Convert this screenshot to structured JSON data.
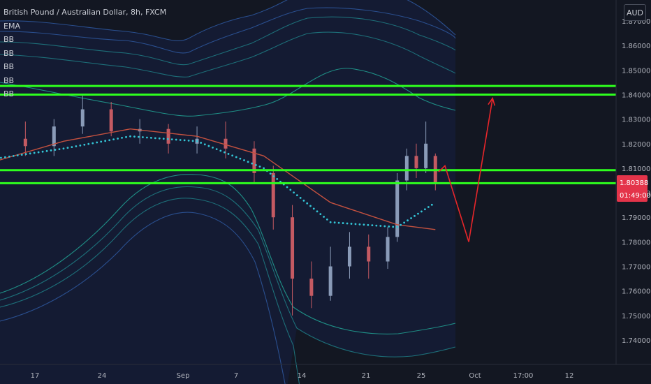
{
  "legend": {
    "symbol": "British Pound / Australian Dollar, 8h, FXCM",
    "indicators": [
      "EMA",
      "BB",
      "BB",
      "BB",
      "BB",
      "BB"
    ]
  },
  "currency": "AUD",
  "price_tag": {
    "price": "1.80388",
    "countdown": "01:49:00"
  },
  "colors": {
    "background": "#131722",
    "up_candle": "#8a9bb8",
    "down_candle": "#c45a62",
    "ema": "#c4513f",
    "dotted_mid": "#34c5d6",
    "bb_inner": "#1f8f86",
    "bb_mid": "#1d6f79",
    "bb_outer": "#2a4f8f",
    "bb_fill": "#16214a",
    "horizontal_lines": "#2eff1e",
    "projection": "#e8262a",
    "price_tag_bg": "#e4344a"
  },
  "chart_data": {
    "type": "line",
    "title": "British Pound / Australian Dollar, 8h, FXCM",
    "xlabel": "",
    "ylabel": "",
    "ylim": [
      1.7335,
      1.8775
    ],
    "grid": false,
    "x_ticks": [
      "17",
      "24",
      "Sep",
      "7",
      "14",
      "21",
      "25",
      "Oct",
      "17:00",
      "12"
    ],
    "y_ticks": [
      "1.74000",
      "1.75000",
      "1.76000",
      "1.77000",
      "1.78000",
      "1.79000",
      "1.80000",
      "1.81000",
      "1.82000",
      "1.83000",
      "1.84000",
      "1.85000",
      "1.86000",
      "1.87000"
    ],
    "horizontal_levels": [
      1.8435,
      1.84,
      1.8092,
      1.8039
    ],
    "projection": [
      {
        "date": "Sep 28 08:00",
        "price": 1.8085
      },
      {
        "date": "Sep 29 00:00",
        "price": 1.811
      },
      {
        "date": "Oct 01 12:00",
        "price": 1.78
      },
      {
        "date": "Oct 04 00:00",
        "price": 1.8385
      }
    ],
    "series": [
      {
        "name": "EMA",
        "x": [
          "Aug 13",
          "Aug 20",
          "Aug 27",
          "Sep 3",
          "Sep 10",
          "Sep 17",
          "Sep 24",
          "Sep 28"
        ],
        "values": [
          1.813,
          1.821,
          1.826,
          1.823,
          1.815,
          1.796,
          1.787,
          1.785
        ]
      },
      {
        "name": "BB",
        "x": [
          "Aug 13",
          "Aug 20",
          "Aug 27",
          "Sep 3",
          "Sep 10",
          "Sep 17",
          "Sep 24",
          "Sep 28"
        ],
        "values": [
          1.814,
          1.818,
          1.823,
          1.821,
          1.81,
          1.788,
          1.786,
          1.796
        ]
      }
    ],
    "candles": [
      {
        "x": "Aug 13",
        "open": 1.816,
        "close": 1.822,
        "high": 1.827,
        "low": 1.812
      },
      {
        "x": "Aug 16",
        "open": 1.822,
        "close": 1.819,
        "high": 1.829,
        "low": 1.815
      },
      {
        "x": "Aug 19",
        "open": 1.819,
        "close": 1.827,
        "high": 1.83,
        "low": 1.815
      },
      {
        "x": "Aug 22",
        "open": 1.827,
        "close": 1.834,
        "high": 1.8395,
        "low": 1.824
      },
      {
        "x": "Aug 25",
        "open": 1.834,
        "close": 1.825,
        "high": 1.837,
        "low": 1.823
      },
      {
        "x": "Aug 28",
        "open": 1.825,
        "close": 1.826,
        "high": 1.83,
        "low": 1.82
      },
      {
        "x": "Aug 31",
        "open": 1.826,
        "close": 1.82,
        "high": 1.828,
        "low": 1.816
      },
      {
        "x": "Sep 3",
        "open": 1.82,
        "close": 1.822,
        "high": 1.827,
        "low": 1.816
      },
      {
        "x": "Sep 6",
        "open": 1.822,
        "close": 1.818,
        "high": 1.829,
        "low": 1.814
      },
      {
        "x": "Sep 9",
        "open": 1.818,
        "close": 1.808,
        "high": 1.821,
        "low": 1.804
      },
      {
        "x": "Sep 11",
        "open": 1.808,
        "close": 1.79,
        "high": 1.811,
        "low": 1.785
      },
      {
        "x": "Sep 13",
        "open": 1.79,
        "close": 1.765,
        "high": 1.795,
        "low": 1.75
      },
      {
        "x": "Sep 15",
        "open": 1.765,
        "close": 1.758,
        "high": 1.772,
        "low": 1.753
      },
      {
        "x": "Sep 17",
        "open": 1.758,
        "close": 1.77,
        "high": 1.778,
        "low": 1.756
      },
      {
        "x": "Sep 19",
        "open": 1.77,
        "close": 1.778,
        "high": 1.784,
        "low": 1.765
      },
      {
        "x": "Sep 21",
        "open": 1.778,
        "close": 1.772,
        "high": 1.783,
        "low": 1.765
      },
      {
        "x": "Sep 23",
        "open": 1.772,
        "close": 1.782,
        "high": 1.786,
        "low": 1.769
      },
      {
        "x": "Sep 24",
        "open": 1.782,
        "close": 1.805,
        "high": 1.808,
        "low": 1.78
      },
      {
        "x": "Sep 25",
        "open": 1.805,
        "close": 1.815,
        "high": 1.818,
        "low": 1.801
      },
      {
        "x": "Sep 26",
        "open": 1.815,
        "close": 1.81,
        "high": 1.82,
        "low": 1.806
      },
      {
        "x": "Sep 27",
        "open": 1.81,
        "close": 1.82,
        "high": 1.829,
        "low": 1.808
      },
      {
        "x": "Sep 28",
        "open": 1.815,
        "close": 1.8039,
        "high": 1.816,
        "low": 1.801
      }
    ]
  }
}
